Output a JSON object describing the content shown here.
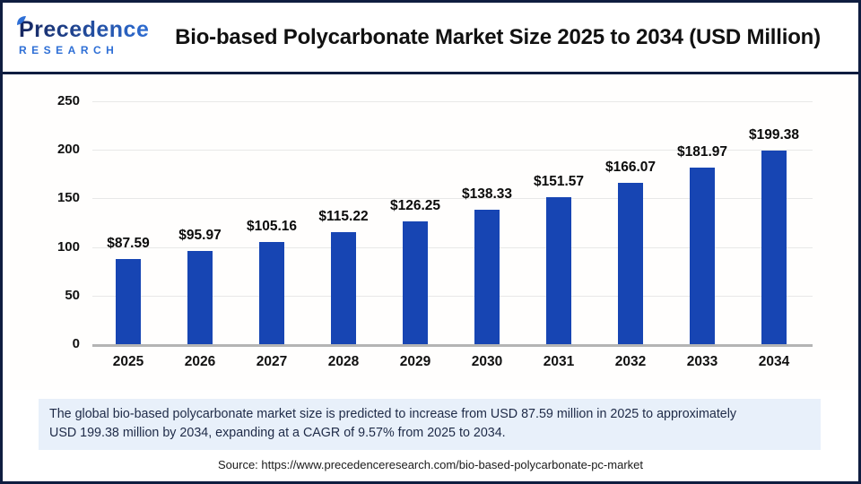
{
  "header": {
    "logo": {
      "line1": "Precedence",
      "line2": "RESEARCH"
    },
    "title": "Bio-based Polycarbonate Market Size 2025 to 2034 (USD Million)"
  },
  "chart_data": {
    "type": "bar",
    "title": "Bio-based Polycarbonate Market Size 2025 to 2034 (USD Million)",
    "categories": [
      "2025",
      "2026",
      "2027",
      "2028",
      "2029",
      "2030",
      "2031",
      "2032",
      "2033",
      "2034"
    ],
    "values": [
      87.59,
      95.97,
      105.16,
      115.22,
      126.25,
      138.33,
      151.57,
      166.07,
      181.97,
      199.38
    ],
    "value_prefix": "$",
    "xlabel": "",
    "ylabel": "",
    "ylim": [
      0,
      250
    ],
    "yticks": [
      0,
      50,
      100,
      150,
      200,
      250
    ],
    "grid": true,
    "legend_position": "none",
    "bar_color": "#1745b3",
    "gridline_color": "#e8e8e8",
    "axis_color": "#b4b4b4"
  },
  "footnote": {
    "line1": "The global bio-based polycarbonate market size is predicted to increase from USD 87.59 million in 2025 to approximately",
    "line2": "USD 199.38 million by 2034, expanding at a CAGR of 9.57% from 2025 to 2034."
  },
  "source": "Source: https://www.precedenceresearch.com/bio-based-polycarbonate-pc-market",
  "colors": {
    "frame_border": "#0f1d40",
    "footnote_bg": "#e8f0fa",
    "logo_navy": "#16265f",
    "logo_blue": "#2e6fd6"
  }
}
